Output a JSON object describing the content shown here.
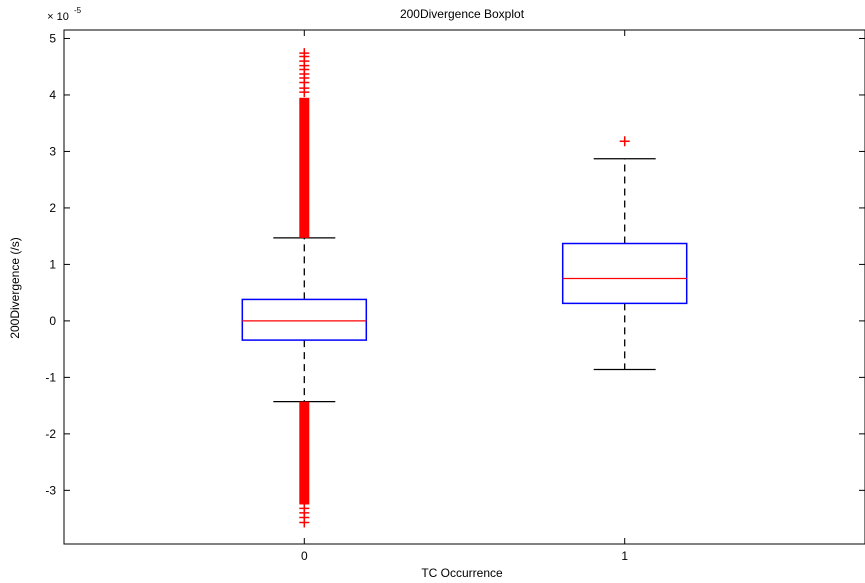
{
  "chart_data": {
    "type": "boxplot",
    "title": "200Divergence Boxplot",
    "xlabel": "TC Occurrence",
    "ylabel": "200Divergence (/s)",
    "y_multiplier": "× 10",
    "y_multiplier_exponent": "-5",
    "categories": [
      "0",
      "1"
    ],
    "ylim": [
      -3.95,
      5.15
    ],
    "yticks": [
      -3,
      -2,
      -1,
      0,
      1,
      2,
      3,
      4,
      5
    ],
    "grid": false,
    "boxes": [
      {
        "category": "0",
        "q1": -0.34,
        "median": 0.0,
        "q3": 0.38,
        "whisker_low": -1.43,
        "whisker_high": 1.47,
        "outlier_bands": [
          {
            "from": 1.47,
            "to": 3.95
          },
          {
            "from": -3.25,
            "to": -1.43
          }
        ],
        "outliers": [
          4.05,
          4.12,
          4.22,
          4.3,
          4.37,
          4.45,
          4.52,
          4.6,
          4.68,
          4.74,
          -3.32,
          -3.4,
          -3.48,
          -3.57
        ]
      },
      {
        "category": "1",
        "q1": 0.31,
        "median": 0.75,
        "q3": 1.37,
        "whisker_low": -0.86,
        "whisker_high": 2.87,
        "outlier_bands": [],
        "outliers": [
          3.18
        ]
      }
    ],
    "colors": {
      "box": "#0000ff",
      "median": "#ff0000",
      "whisker": "#000000",
      "outlier": "#ff0000",
      "axis": "#000000"
    }
  }
}
